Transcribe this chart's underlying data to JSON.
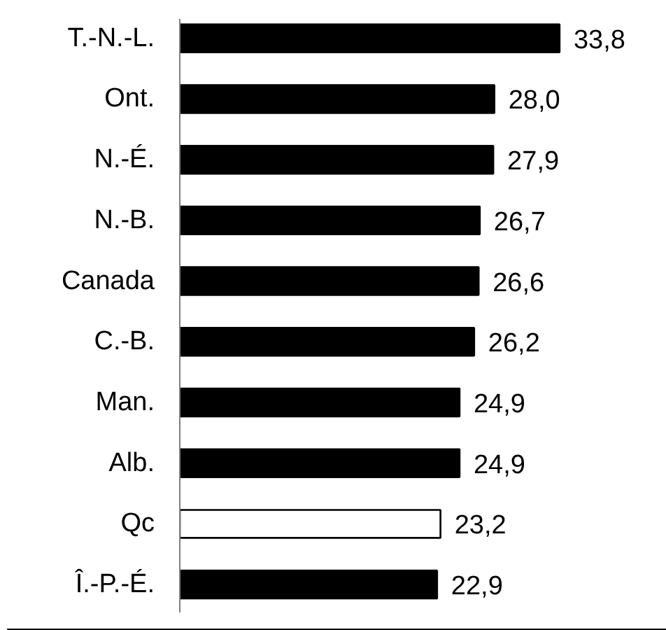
{
  "chart_data": {
    "type": "bar",
    "orientation": "horizontal",
    "categories": [
      "T.-N.-L.",
      "Ont.",
      "N.-É.",
      "N.-B.",
      "Canada",
      "C.-B.",
      "Man.",
      "Alb.",
      "Qc",
      "Î.-P.-É."
    ],
    "values": [
      33.8,
      28.0,
      27.9,
      26.7,
      26.6,
      26.2,
      24.9,
      24.9,
      23.2,
      22.9
    ],
    "value_labels": [
      "33,8",
      "28,0",
      "27,9",
      "26,7",
      "26,6",
      "26,2",
      "24,9",
      "24,9",
      "23,2",
      "22,9"
    ],
    "colors": [
      "#000000",
      "#000000",
      "#000000",
      "#000000",
      "#000000",
      "#000000",
      "#000000",
      "#000000",
      "#ffffff",
      "#000000"
    ]
  }
}
